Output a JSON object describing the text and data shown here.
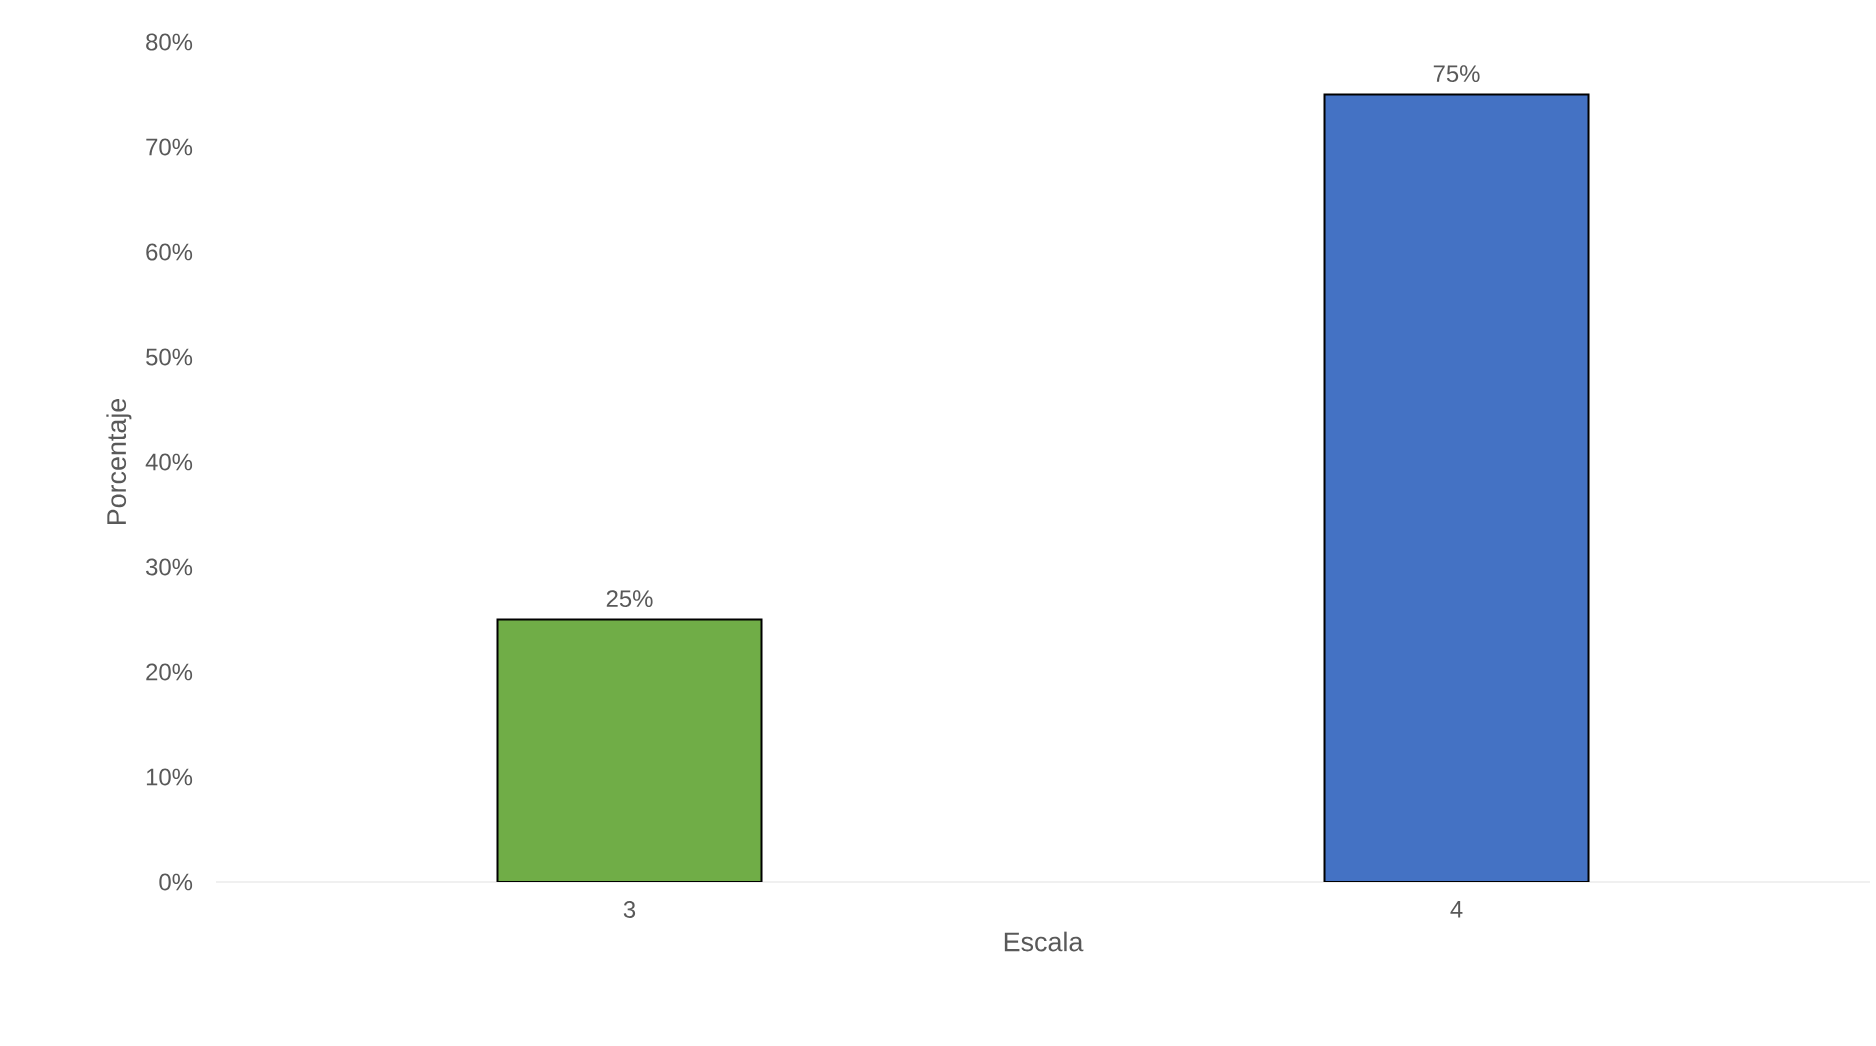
{
  "chart_data": {
    "type": "bar",
    "xlabel": "Escala",
    "ylabel": "Porcentaje",
    "categories": [
      "3",
      "4"
    ],
    "values": [
      25,
      75
    ],
    "colors": [
      "#70ad47",
      "#4472c4"
    ],
    "value_labels": [
      "25%",
      "75%"
    ],
    "ylim": [
      0,
      80
    ],
    "yticks": [
      {
        "value": 0,
        "label": "0%"
      },
      {
        "value": 10,
        "label": "10%"
      },
      {
        "value": 20,
        "label": "20%"
      },
      {
        "value": 30,
        "label": "30%"
      },
      {
        "value": 40,
        "label": "40%"
      },
      {
        "value": 50,
        "label": "50%"
      },
      {
        "value": 60,
        "label": "60%"
      },
      {
        "value": 70,
        "label": "70%"
      },
      {
        "value": 80,
        "label": "80%"
      }
    ],
    "grid": false
  }
}
